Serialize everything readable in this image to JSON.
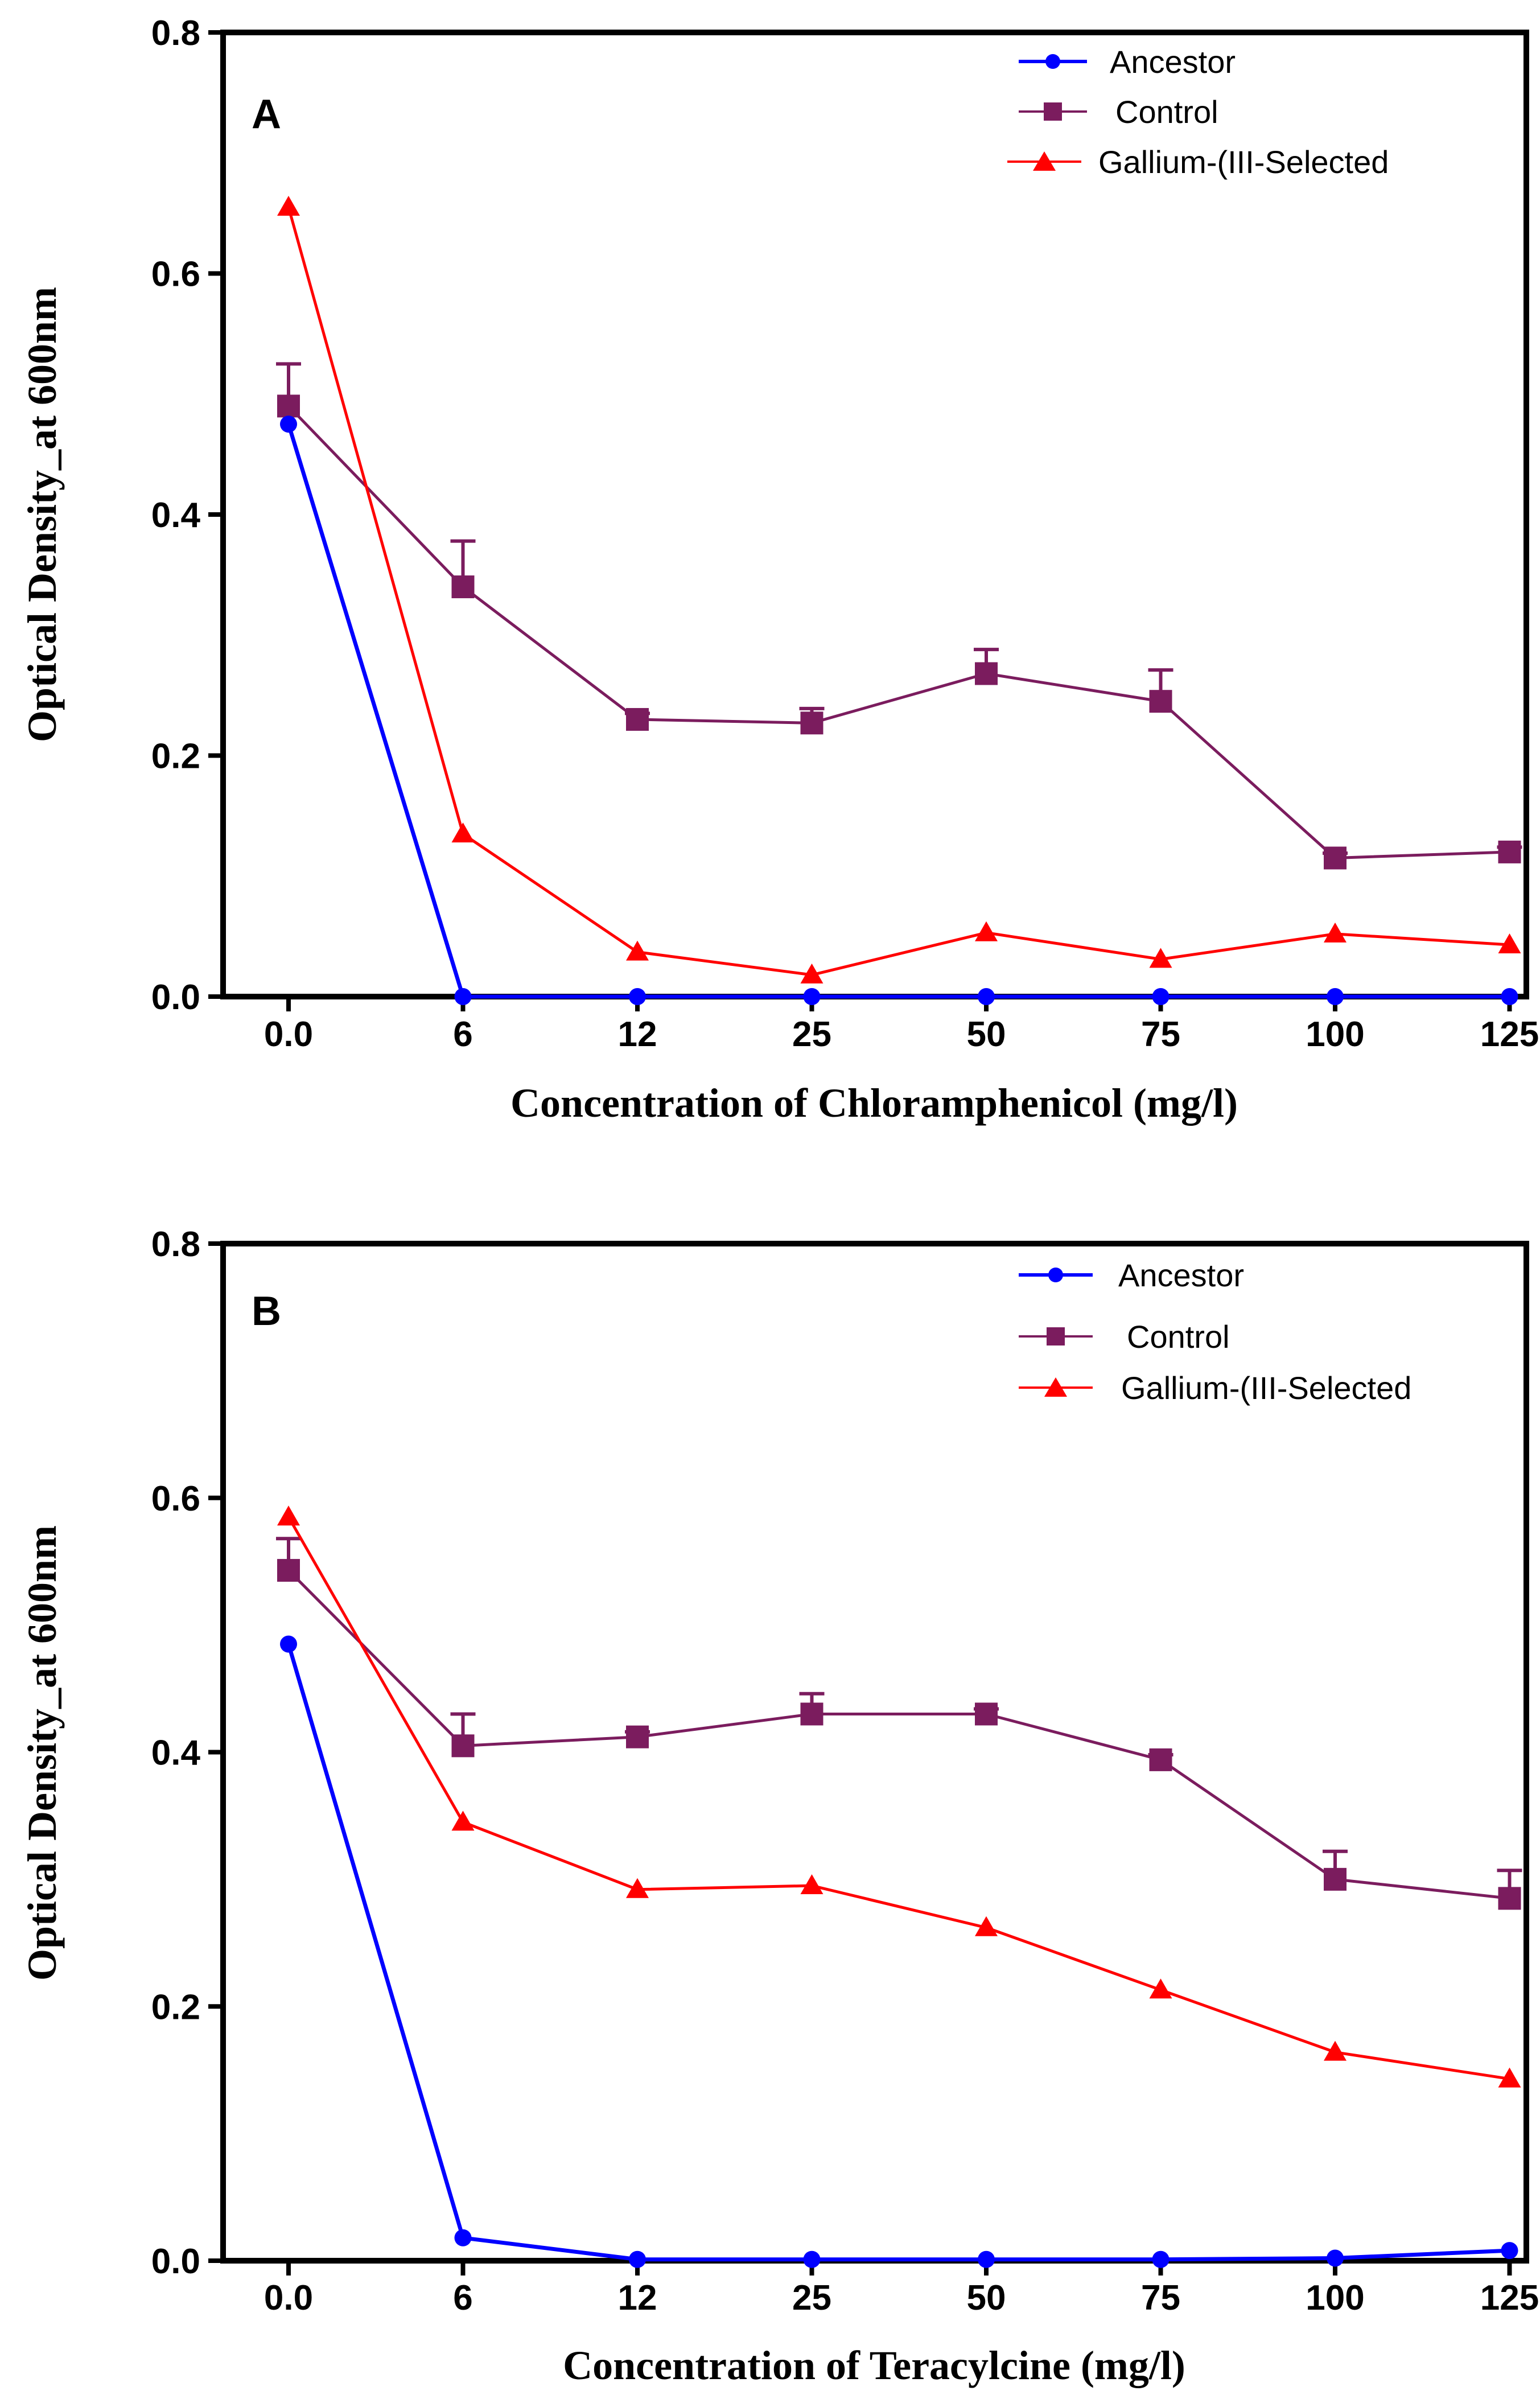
{
  "figure": {
    "panels_count": 2
  },
  "chart_data": [
    {
      "type": "line",
      "panel_label": "A",
      "xlabel": "Concentration of Chloramphenicol (mg/l)",
      "ylabel": "Optical Density_at 600nm",
      "categories": [
        "0.0",
        "6",
        "12",
        "25",
        "50",
        "75",
        "100",
        "125"
      ],
      "ylim": [
        0,
        0.8
      ],
      "yticks": [
        "0.0",
        "0.2",
        "0.4",
        "0.6",
        "0.8"
      ],
      "ytick_values": [
        0,
        0.2,
        0.4,
        0.6,
        0.8
      ],
      "legend_position": "top-right",
      "series": [
        {
          "name": "Ancestor",
          "color": "#0000ff",
          "marker": "circle",
          "values": [
            0.475,
            0.0,
            0.0,
            0.0,
            0.0,
            0.0,
            0.0,
            0.0
          ],
          "errors": [
            0,
            0,
            0,
            0,
            0,
            0,
            0,
            0
          ]
        },
        {
          "name": "Control",
          "color": "#7b1c5e",
          "marker": "square",
          "values": [
            0.49,
            0.34,
            0.23,
            0.227,
            0.268,
            0.245,
            0.115,
            0.12
          ],
          "errors": [
            0.035,
            0.038,
            0.005,
            0.012,
            0.02,
            0.026,
            0.004,
            0.004
          ]
        },
        {
          "name": "Gallium-(III-Selected",
          "color": "#ff0000",
          "marker": "triangle",
          "values": [
            0.655,
            0.135,
            0.037,
            0.018,
            0.053,
            0.031,
            0.052,
            0.043
          ],
          "errors": [
            0,
            0,
            0,
            0,
            0,
            0,
            0,
            0
          ]
        }
      ]
    },
    {
      "type": "line",
      "panel_label": "B",
      "xlabel": "Concentration of Teracylcine (mg/l)",
      "ylabel": "Optical Density_at 600nm",
      "categories": [
        "0.0",
        "6",
        "12",
        "25",
        "50",
        "75",
        "100",
        "125"
      ],
      "ylim": [
        0,
        0.8
      ],
      "yticks": [
        "0.0",
        "0.2",
        "0.4",
        "0.6",
        "0.8"
      ],
      "ytick_values": [
        0,
        0.2,
        0.4,
        0.6,
        0.8
      ],
      "legend_position": "top-right",
      "series": [
        {
          "name": "Ancestor",
          "color": "#0000ff",
          "marker": "circle",
          "values": [
            0.485,
            0.018,
            0.001,
            0.001,
            0.001,
            0.001,
            0.002,
            0.008
          ],
          "errors": [
            0,
            0,
            0,
            0,
            0,
            0,
            0,
            0
          ]
        },
        {
          "name": "Control",
          "color": "#7b1c5e",
          "marker": "square",
          "values": [
            0.543,
            0.405,
            0.412,
            0.43,
            0.43,
            0.394,
            0.3,
            0.285
          ],
          "errors": [
            0.025,
            0.025,
            0.004,
            0.016,
            0.004,
            0.004,
            0.022,
            0.022
          ]
        },
        {
          "name": "Gallium-(III-Selected",
          "color": "#ff0000",
          "marker": "triangle",
          "values": [
            0.585,
            0.345,
            0.292,
            0.295,
            0.262,
            0.213,
            0.164,
            0.143
          ],
          "errors": [
            0,
            0,
            0,
            0,
            0,
            0,
            0,
            0
          ]
        }
      ]
    }
  ]
}
